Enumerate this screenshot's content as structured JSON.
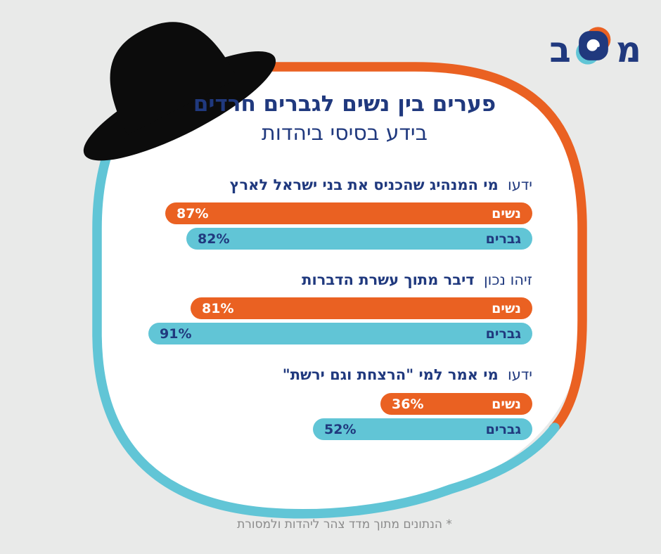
{
  "page": {
    "background_color": "#E9EAE9"
  },
  "logo": {
    "letter_mem": "מ",
    "letter_bet": "ב"
  },
  "title": {
    "line1": "פערים בין נשים לגברים חרדים",
    "line2": "בידע בסיסי ביהדות"
  },
  "footnote": "* הנתונים מתוך מדד צהר ליהדות ולמסורת",
  "colors": {
    "orange": "#EA6122",
    "teal": "#61C5D6",
    "navy": "#20397E",
    "text_gray": "#8B8B8B",
    "hat_black": "#0C0C0C",
    "card_white": "#FFFFFF"
  },
  "chart_data": {
    "type": "bar",
    "orientation": "horizontal_rtl",
    "value_unit": "%",
    "legend": {
      "women_label": "נשים",
      "men_label": "גברים",
      "women_color": "#EA6122",
      "men_color": "#61C5D6"
    },
    "axis": {
      "x_min": 0,
      "x_max": 100,
      "pixels_per_percent": 6,
      "grid": false
    },
    "questions": [
      {
        "lead": "ידעו",
        "emphasis": "מי המנהיג שהכניס את בני ישראל לארץ",
        "bars": [
          {
            "group": "נשים",
            "value": 87,
            "label": "87%"
          },
          {
            "group": "גברים",
            "value": 82,
            "label": "82%"
          }
        ]
      },
      {
        "lead": "זיהו נכון",
        "emphasis": "דיבר מתוך עשרת הדברות",
        "bars": [
          {
            "group": "נשים",
            "value": 81,
            "label": "81%"
          },
          {
            "group": "גברים",
            "value": 91,
            "label": "91%"
          }
        ]
      },
      {
        "lead": "ידעו",
        "emphasis": "מי אמר למי \"הרצחת וגם ירשת\"",
        "bars": [
          {
            "group": "נשים",
            "value": 36,
            "label": "36%"
          },
          {
            "group": "גברים",
            "value": 52,
            "label": "52%"
          }
        ]
      }
    ]
  }
}
